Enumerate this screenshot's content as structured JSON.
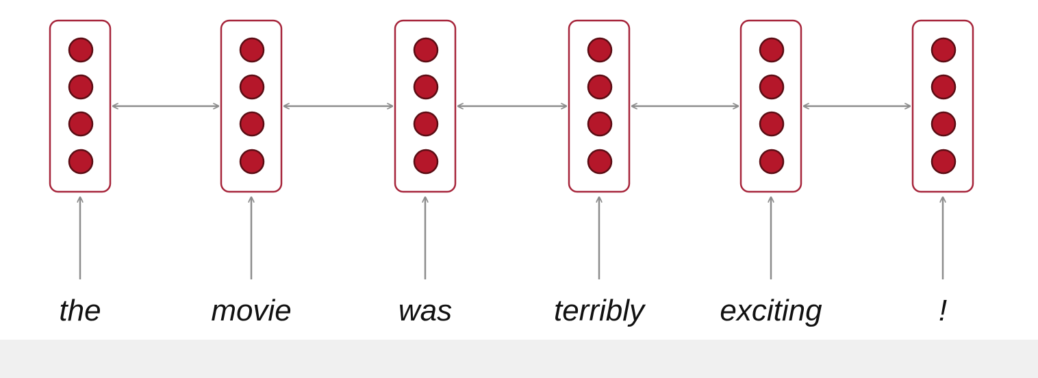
{
  "diagram": {
    "tokens": [
      "the",
      "movie",
      "was",
      "terribly",
      "exciting",
      "!"
    ],
    "units_per_cell": 4,
    "colors": {
      "unit_fill": "#b5172a",
      "unit_stroke": "#5a0d14",
      "cell_border": "#a6243a",
      "arrow": "#8c8c8c",
      "text": "#111111",
      "bottom_band": "#f0f0f0"
    }
  }
}
